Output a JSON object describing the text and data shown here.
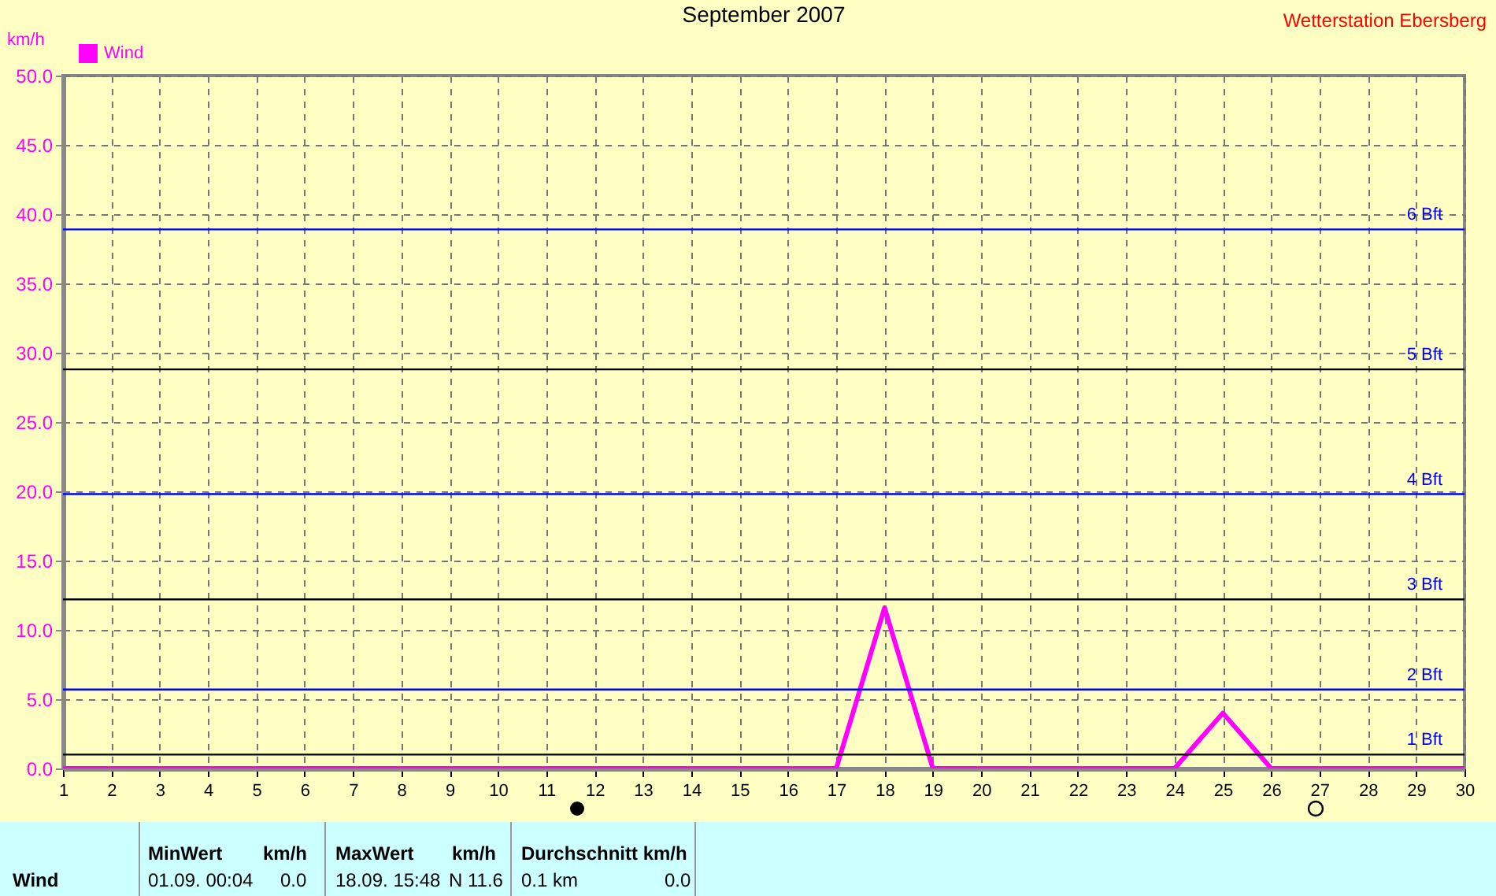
{
  "chart_data": {
    "type": "line",
    "title": "September 2007",
    "subtitle": "Wetterstation Ebersberg",
    "ylabel": "km/h",
    "x": [
      1,
      2,
      3,
      4,
      5,
      6,
      7,
      8,
      9,
      10,
      11,
      12,
      13,
      14,
      15,
      16,
      17,
      18,
      19,
      20,
      21,
      22,
      23,
      24,
      25,
      26,
      27,
      28,
      29,
      30
    ],
    "series": [
      {
        "name": "Wind",
        "color": "#ff00ff",
        "values": [
          0,
          0,
          0,
          0,
          0,
          0,
          0,
          0,
          0,
          0,
          0,
          0,
          0,
          0,
          0,
          0,
          0,
          11.6,
          0,
          0,
          0,
          0,
          0,
          0,
          4.0,
          0,
          0,
          0,
          0,
          0
        ]
      }
    ],
    "xlim": [
      1,
      30
    ],
    "xticks": [
      1,
      2,
      3,
      4,
      5,
      6,
      7,
      8,
      9,
      10,
      11,
      12,
      13,
      14,
      15,
      16,
      17,
      18,
      19,
      20,
      21,
      22,
      23,
      24,
      25,
      26,
      27,
      28,
      29,
      30
    ],
    "ylim": [
      0,
      50
    ],
    "yticks": [
      {
        "value": 0,
        "label": "0.0"
      },
      {
        "value": 5,
        "label": "5.0"
      },
      {
        "value": 10,
        "label": "10.0"
      },
      {
        "value": 15,
        "label": "15.0"
      },
      {
        "value": 20,
        "label": "20.0"
      },
      {
        "value": 25,
        "label": "25.0"
      },
      {
        "value": 30,
        "label": "30.0"
      },
      {
        "value": 35,
        "label": "35.0"
      },
      {
        "value": 40,
        "label": "40.0"
      },
      {
        "value": 45,
        "label": "45.0"
      },
      {
        "value": 50,
        "label": "50.0"
      }
    ],
    "ref_lines": [
      {
        "axis": "y",
        "value": 1,
        "label": "1 Bft",
        "color": "#000000"
      },
      {
        "axis": "y",
        "value": 5.7,
        "label": "2 Bft",
        "color": "#0000ff"
      },
      {
        "axis": "y",
        "value": 12.2,
        "label": "3 Bft",
        "color": "#000000"
      },
      {
        "axis": "y",
        "value": 19.8,
        "label": "4 Bft",
        "color": "#0000ff"
      },
      {
        "axis": "y",
        "value": 28.8,
        "label": "5 Bft",
        "color": "#000000"
      },
      {
        "axis": "y",
        "value": 38.9,
        "label": "6 Bft",
        "color": "#0000ff"
      }
    ],
    "grid": true,
    "legend": "top left",
    "marker": "none",
    "line_style": "solid",
    "annotations": [
      "Wind",
      "MinWert",
      "km/h",
      "MaxWert",
      "km/h",
      "Durchschnitt km/h",
      "01.09.  00:04",
      "0.0",
      "18.09.  15:48",
      "N 11.6",
      "0.1 km",
      "0.0"
    ]
  }
}
